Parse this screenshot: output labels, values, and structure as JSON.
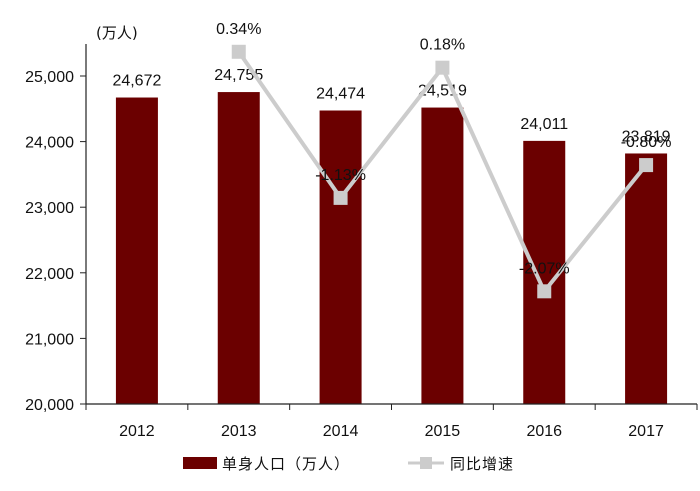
{
  "chart_data": {
    "type": "bar",
    "categories": [
      "2012",
      "2013",
      "2014",
      "2015",
      "2016",
      "2017"
    ],
    "y_unit_label": "(万人)",
    "ylim": [
      20000,
      25000
    ],
    "yticks": [
      20000,
      21000,
      22000,
      23000,
      24000,
      25000
    ],
    "ytick_labels": [
      "20,000",
      "21,000",
      "22,000",
      "23,000",
      "24,000",
      "25,000"
    ],
    "series": [
      {
        "name": "单身人口（万人）",
        "kind": "bar",
        "color": "#6b0000",
        "values": [
          24672,
          24755,
          24474,
          24519,
          24011,
          23819
        ],
        "labels": [
          "24,672",
          "24,755",
          "24,474",
          "24,519",
          "24,011",
          "23,819"
        ]
      },
      {
        "name": "同比增速",
        "kind": "line",
        "color": "#cccccc",
        "values": [
          null,
          0.34,
          -1.13,
          0.18,
          -2.07,
          -0.8
        ],
        "labels": [
          "",
          "0.34%",
          "-1.13%",
          "0.18%",
          "-2.07%",
          "-0.80%"
        ]
      }
    ],
    "legend": "bottom"
  }
}
